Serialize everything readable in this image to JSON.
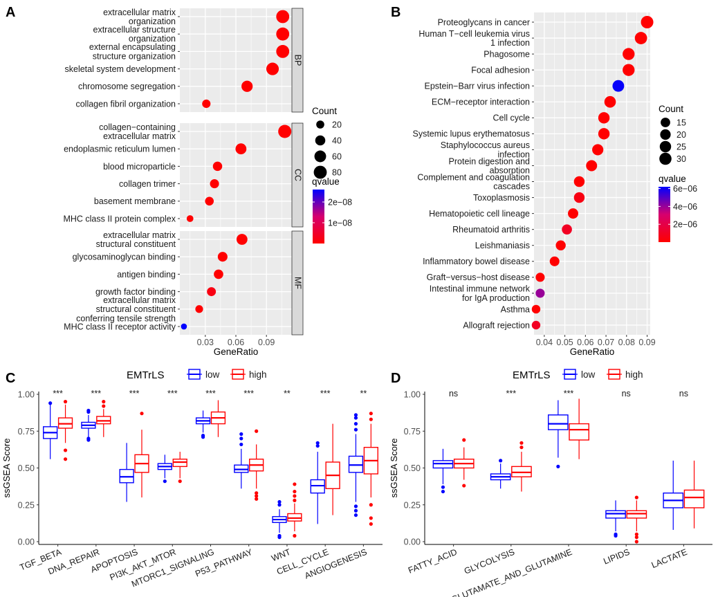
{
  "colors": {
    "low": "#0000FF",
    "high": "#FF0000",
    "panel": "#EBEBEB",
    "strip": "#D9D9D9",
    "grid": "#FFFFFF",
    "qlow": "#FF0000",
    "qhigh": "#0000FF"
  },
  "chart_data": [
    {
      "panel": "A",
      "type": "scatter",
      "subtype": "dotplot",
      "xlabel": "GeneRatio",
      "xlim": [
        0.005,
        0.115
      ],
      "xticks": [
        0.03,
        0.06,
        0.09
      ],
      "xtick_labels": [
        "0.03",
        "0.06",
        "0.09"
      ],
      "size_legend": {
        "title": "Count",
        "values": [
          20,
          40,
          60,
          80
        ]
      },
      "color_legend": {
        "title": "qvalue",
        "min": 0,
        "max": 2.6e-08,
        "ticks": [
          1e-08,
          2e-08
        ],
        "tick_labels": [
          "1e−08",
          "2e−08"
        ]
      },
      "facets": [
        {
          "label": "BP",
          "terms": [
            {
              "term": [
                "extracellular matrix",
                "organization"
              ],
              "gene_ratio": 0.106,
              "count": 80,
              "qvalue": 0
            },
            {
              "term": [
                "extracellular structure",
                "organization"
              ],
              "gene_ratio": 0.106,
              "count": 80,
              "qvalue": 0
            },
            {
              "term": [
                "external encapsulating",
                "structure organization"
              ],
              "gene_ratio": 0.106,
              "count": 80,
              "qvalue": 0
            },
            {
              "term": [
                "skeletal system development"
              ],
              "gene_ratio": 0.096,
              "count": 72,
              "qvalue": 0
            },
            {
              "term": [
                "chromosome segregation"
              ],
              "gene_ratio": 0.071,
              "count": 54,
              "qvalue": 0
            },
            {
              "term": [
                "collagen fibril organization"
              ],
              "gene_ratio": 0.031,
              "count": 23,
              "qvalue": 0
            }
          ]
        },
        {
          "label": "CC",
          "terms": [
            {
              "term": [
                "collagen−containing",
                "extracellular matrix"
              ],
              "gene_ratio": 0.108,
              "count": 82,
              "qvalue": 0
            },
            {
              "term": [
                "endoplasmic reticulum lumen"
              ],
              "gene_ratio": 0.065,
              "count": 50,
              "qvalue": 0
            },
            {
              "term": [
                "blood microparticle"
              ],
              "gene_ratio": 0.042,
              "count": 32,
              "qvalue": 0
            },
            {
              "term": [
                "collagen trimer"
              ],
              "gene_ratio": 0.039,
              "count": 29,
              "qvalue": 0
            },
            {
              "term": [
                "basement membrane"
              ],
              "gene_ratio": 0.034,
              "count": 26,
              "qvalue": 0
            },
            {
              "term": [
                "MHC class II protein complex"
              ],
              "gene_ratio": 0.015,
              "count": 11,
              "qvalue": 0
            }
          ]
        },
        {
          "label": "MF",
          "terms": [
            {
              "term": [
                "extracellular matrix",
                "structural constituent"
              ],
              "gene_ratio": 0.066,
              "count": 50,
              "qvalue": 0
            },
            {
              "term": [
                "glycosaminoglycan binding"
              ],
              "gene_ratio": 0.047,
              "count": 36,
              "qvalue": 0
            },
            {
              "term": [
                "antigen binding"
              ],
              "gene_ratio": 0.043,
              "count": 33,
              "qvalue": 0
            },
            {
              "term": [
                "growth factor binding"
              ],
              "gene_ratio": 0.036,
              "count": 28,
              "qvalue": 2e-09
            },
            {
              "term": [
                "extracellular matrix",
                "structural constituent",
                "conferring tensile strength"
              ],
              "gene_ratio": 0.024,
              "count": 18,
              "qvalue": 0
            },
            {
              "term": [
                "MHC class II receptor activity"
              ],
              "gene_ratio": 0.009,
              "count": 7,
              "qvalue": 2.6e-08
            }
          ]
        }
      ]
    },
    {
      "panel": "B",
      "type": "scatter",
      "subtype": "dotplot",
      "xlabel": "GeneRatio",
      "xlim": [
        0.035,
        0.0915
      ],
      "xticks": [
        0.04,
        0.05,
        0.06,
        0.07,
        0.08,
        0.09
      ],
      "xtick_labels": [
        "0.04",
        "0.05",
        "0.06",
        "0.07",
        "0.08",
        "0.09"
      ],
      "size_legend": {
        "title": "Count",
        "values": [
          15,
          20,
          25,
          30
        ]
      },
      "color_legend": {
        "title": "qvalue",
        "min": 0,
        "max": 6.2e-06,
        "ticks": [
          2e-06,
          4e-06,
          6e-06
        ],
        "tick_labels": [
          "2e−06",
          "4e−06",
          "6e−06"
        ]
      },
      "terms": [
        {
          "term": [
            "Proteoglycans in cancer"
          ],
          "gene_ratio": 0.09,
          "count": 32,
          "qvalue": 0
        },
        {
          "term": [
            "Human T−cell leukemia virus",
            "1 infection"
          ],
          "gene_ratio": 0.087,
          "count": 31,
          "qvalue": 0
        },
        {
          "term": [
            "Phagosome"
          ],
          "gene_ratio": 0.081,
          "count": 29,
          "qvalue": 0
        },
        {
          "term": [
            "Focal adhesion"
          ],
          "gene_ratio": 0.081,
          "count": 29,
          "qvalue": 0
        },
        {
          "term": [
            "Epstein−Barr virus infection"
          ],
          "gene_ratio": 0.076,
          "count": 27,
          "qvalue": 6.1e-06
        },
        {
          "term": [
            "ECM−receptor interaction"
          ],
          "gene_ratio": 0.072,
          "count": 26,
          "qvalue": 0
        },
        {
          "term": [
            "Cell cycle"
          ],
          "gene_ratio": 0.069,
          "count": 25,
          "qvalue": 0
        },
        {
          "term": [
            "Systemic lupus erythematosus"
          ],
          "gene_ratio": 0.069,
          "count": 25,
          "qvalue": 0
        },
        {
          "term": [
            "Staphylococcus aureus",
            "infection"
          ],
          "gene_ratio": 0.066,
          "count": 24,
          "qvalue": 0
        },
        {
          "term": [
            "Protein digestion and",
            "absorption"
          ],
          "gene_ratio": 0.063,
          "count": 23,
          "qvalue": 0
        },
        {
          "term": [
            "Complement and coagulation",
            "cascades"
          ],
          "gene_ratio": 0.057,
          "count": 21,
          "qvalue": 0
        },
        {
          "term": [
            "Toxoplasmosis"
          ],
          "gene_ratio": 0.057,
          "count": 21,
          "qvalue": 5e-07
        },
        {
          "term": [
            "Hematopoietic cell lineage"
          ],
          "gene_ratio": 0.054,
          "count": 19,
          "qvalue": 0
        },
        {
          "term": [
            "Rheumatoid arthritis"
          ],
          "gene_ratio": 0.051,
          "count": 18,
          "qvalue": 1e-06
        },
        {
          "term": [
            "Leishmaniasis"
          ],
          "gene_ratio": 0.048,
          "count": 17,
          "qvalue": 0
        },
        {
          "term": [
            "Inflammatory bowel disease"
          ],
          "gene_ratio": 0.045,
          "count": 16,
          "qvalue": 0
        },
        {
          "term": [
            "Graft−versus−host disease"
          ],
          "gene_ratio": 0.038,
          "count": 13,
          "qvalue": 0
        },
        {
          "term": [
            "Intestinal immune network",
            "for IgA production"
          ],
          "gene_ratio": 0.038,
          "count": 13,
          "qvalue": 4e-06
        },
        {
          "term": [
            "Asthma"
          ],
          "gene_ratio": 0.036,
          "count": 11,
          "qvalue": 0
        },
        {
          "term": [
            "Allograft rejection"
          ],
          "gene_ratio": 0.036,
          "count": 11,
          "qvalue": 1e-06
        }
      ]
    },
    {
      "panel": "C",
      "type": "box",
      "ylabel": "ssGSEA Score",
      "ylim": [
        0,
        1.0
      ],
      "yticks": [
        0,
        0.25,
        0.5,
        0.75,
        1.0
      ],
      "ytick_labels": [
        "0.00",
        "0.25",
        "0.50",
        "0.75",
        "1.00"
      ],
      "legend": {
        "title": "EMTrLS",
        "labels": [
          "low",
          "high"
        ]
      },
      "categories": [
        "TGF_BETA",
        "DNA_REPAIR",
        "APOPTOSIS",
        "PI3K_AKT_MTOR",
        "MTORC1_SIGNALING",
        "P53_PATHWAY",
        "WNT",
        "CELL_CYCLE",
        "ANGIOGENESIS"
      ],
      "significance": [
        "***",
        "***",
        "***",
        "***",
        "***",
        "***",
        "**",
        "***",
        "**"
      ],
      "series": [
        {
          "name": "low",
          "boxes": [
            {
              "min": 0.56,
              "q1": 0.7,
              "median": 0.74,
              "q3": 0.78,
              "max": 0.93,
              "outliers": [
                0.94
              ]
            },
            {
              "min": 0.71,
              "q1": 0.77,
              "median": 0.79,
              "q3": 0.81,
              "max": 0.86,
              "outliers": [
                0.69,
                0.7,
                0.88,
                0.89
              ]
            },
            {
              "min": 0.27,
              "q1": 0.4,
              "median": 0.44,
              "q3": 0.49,
              "max": 0.67,
              "outliers": []
            },
            {
              "min": 0.43,
              "q1": 0.49,
              "median": 0.51,
              "q3": 0.53,
              "max": 0.59,
              "outliers": [
                0.41
              ]
            },
            {
              "min": 0.74,
              "q1": 0.8,
              "median": 0.82,
              "q3": 0.84,
              "max": 0.89,
              "outliers": [
                0.71,
                0.72
              ]
            },
            {
              "min": 0.36,
              "q1": 0.47,
              "median": 0.49,
              "q3": 0.52,
              "max": 0.63,
              "outliers": [
                0.66,
                0.7,
                0.73
              ]
            },
            {
              "min": 0.06,
              "q1": 0.13,
              "median": 0.15,
              "q3": 0.17,
              "max": 0.22,
              "outliers": [
                0.03,
                0.04,
                0.25,
                0.27
              ]
            },
            {
              "min": 0.12,
              "q1": 0.33,
              "median": 0.38,
              "q3": 0.42,
              "max": 0.61,
              "outliers": [
                0.65,
                0.67
              ]
            },
            {
              "min": 0.27,
              "q1": 0.47,
              "median": 0.52,
              "q3": 0.58,
              "max": 0.73,
              "outliers": [
                0.18,
                0.21,
                0.24,
                0.76,
                0.8,
                0.84,
                0.86
              ]
            }
          ]
        },
        {
          "name": "high",
          "boxes": [
            {
              "min": 0.67,
              "q1": 0.77,
              "median": 0.8,
              "q3": 0.84,
              "max": 0.93,
              "outliers": [
                0.56,
                0.62,
                0.95
              ]
            },
            {
              "min": 0.71,
              "q1": 0.8,
              "median": 0.82,
              "q3": 0.85,
              "max": 0.9,
              "outliers": [
                0.92,
                0.95
              ]
            },
            {
              "min": 0.3,
              "q1": 0.47,
              "median": 0.53,
              "q3": 0.59,
              "max": 0.76,
              "outliers": [
                0.87
              ]
            },
            {
              "min": 0.43,
              "q1": 0.51,
              "median": 0.54,
              "q3": 0.56,
              "max": 0.61,
              "outliers": [
                0.41
              ]
            },
            {
              "min": 0.71,
              "q1": 0.8,
              "median": 0.84,
              "q3": 0.88,
              "max": 0.96,
              "outliers": []
            },
            {
              "min": 0.36,
              "q1": 0.48,
              "median": 0.52,
              "q3": 0.56,
              "max": 0.66,
              "outliers": [
                0.29,
                0.31,
                0.33,
                0.75
              ]
            },
            {
              "min": 0.07,
              "q1": 0.14,
              "median": 0.16,
              "q3": 0.19,
              "max": 0.26,
              "outliers": [
                0.04,
                0.28,
                0.31,
                0.34,
                0.39
              ]
            },
            {
              "min": 0.18,
              "q1": 0.36,
              "median": 0.45,
              "q3": 0.54,
              "max": 0.8,
              "outliers": []
            },
            {
              "min": 0.3,
              "q1": 0.46,
              "median": 0.55,
              "q3": 0.64,
              "max": 0.8,
              "outliers": [
                0.12,
                0.16,
                0.25,
                0.83,
                0.87
              ]
            }
          ]
        }
      ]
    },
    {
      "panel": "D",
      "type": "box",
      "ylabel": "ssGSEA Score",
      "ylim": [
        0,
        1.0
      ],
      "yticks": [
        0,
        0.25,
        0.5,
        0.75,
        1.0
      ],
      "ytick_labels": [
        "0.00",
        "0.25",
        "0.50",
        "0.75",
        "1.00"
      ],
      "legend": {
        "title": "EMTrLS",
        "labels": [
          "low",
          "high"
        ]
      },
      "categories": [
        "FATTY_ACID",
        "GLYCOLYSIS",
        "GLUTAMATE_AND_GLUTAMINE",
        "LIPIDS",
        "LACTATE"
      ],
      "significance": [
        "ns",
        "***",
        "***",
        "ns",
        "ns"
      ],
      "series": [
        {
          "name": "low",
          "boxes": [
            {
              "min": 0.39,
              "q1": 0.5,
              "median": 0.53,
              "q3": 0.55,
              "max": 0.63,
              "outliers": [
                0.34,
                0.37
              ]
            },
            {
              "min": 0.36,
              "q1": 0.42,
              "median": 0.44,
              "q3": 0.46,
              "max": 0.53,
              "outliers": [
                0.55
              ]
            },
            {
              "min": 0.57,
              "q1": 0.76,
              "median": 0.8,
              "q3": 0.86,
              "max": 0.96,
              "outliers": [
                0.51
              ]
            },
            {
              "min": 0.07,
              "q1": 0.16,
              "median": 0.19,
              "q3": 0.21,
              "max": 0.28,
              "outliers": [
                0.04,
                0.05
              ]
            },
            {
              "min": 0.08,
              "q1": 0.23,
              "median": 0.28,
              "q3": 0.33,
              "max": 0.55,
              "outliers": []
            }
          ]
        },
        {
          "name": "high",
          "boxes": [
            {
              "min": 0.42,
              "q1": 0.5,
              "median": 0.53,
              "q3": 0.56,
              "max": 0.64,
              "outliers": [
                0.38,
                0.69
              ]
            },
            {
              "min": 0.34,
              "q1": 0.44,
              "median": 0.47,
              "q3": 0.51,
              "max": 0.61,
              "outliers": [
                0.64,
                0.67
              ]
            },
            {
              "min": 0.56,
              "q1": 0.69,
              "median": 0.76,
              "q3": 0.8,
              "max": 0.97,
              "outliers": []
            },
            {
              "min": 0.07,
              "q1": 0.16,
              "median": 0.19,
              "q3": 0.21,
              "max": 0.28,
              "outliers": [
                0.0,
                0.03,
                0.05,
                0.3
              ]
            },
            {
              "min": 0.09,
              "q1": 0.23,
              "median": 0.3,
              "q3": 0.35,
              "max": 0.55,
              "outliers": []
            }
          ]
        }
      ]
    }
  ]
}
